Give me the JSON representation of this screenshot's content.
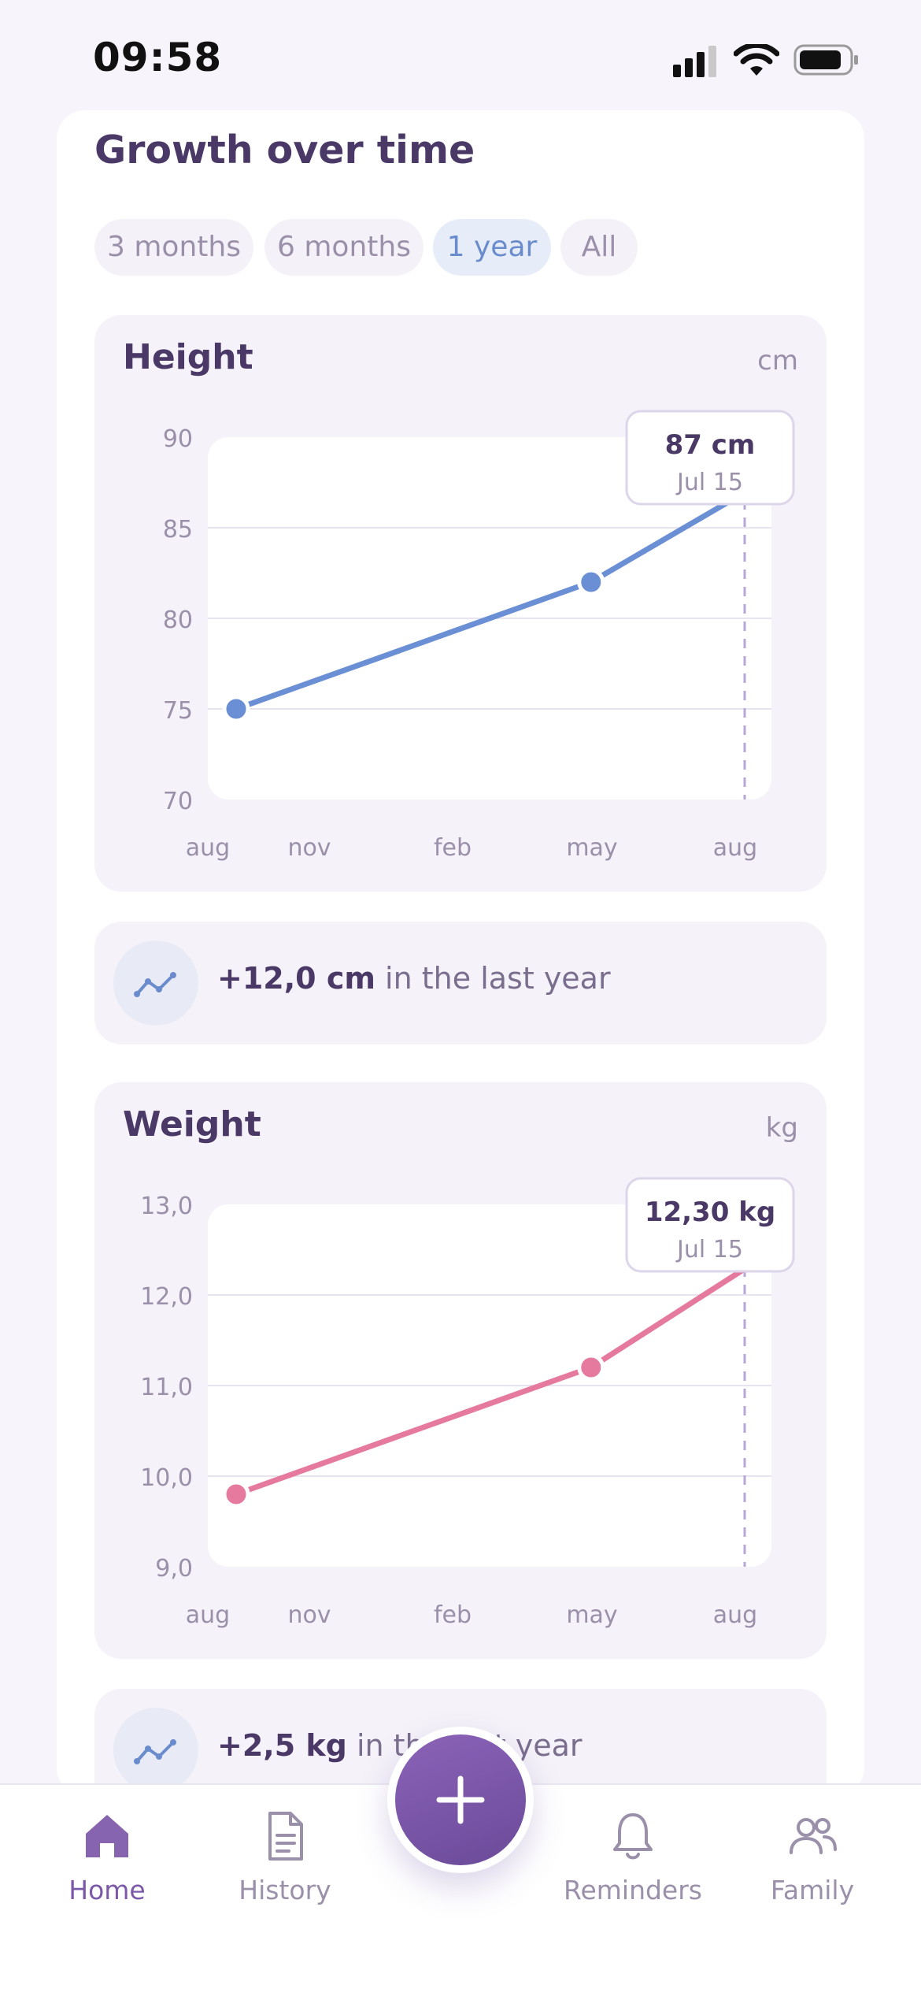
{
  "status_bar": {
    "time": "09:58"
  },
  "section": {
    "title": "Growth over time"
  },
  "range_tabs": [
    {
      "label": "3 months",
      "active": false
    },
    {
      "label": "6 months",
      "active": false
    },
    {
      "label": "1 year",
      "active": true
    },
    {
      "label": "All",
      "active": false
    }
  ],
  "height_chart": {
    "title": "Height",
    "unit": "cm",
    "tooltip": {
      "value": "87 cm",
      "date": "Jul 15"
    },
    "y_ticks": [
      "90",
      "85",
      "80",
      "75",
      "70"
    ],
    "x_ticks": [
      "aug",
      "nov",
      "feb",
      "may",
      "aug"
    ]
  },
  "height_summary": {
    "value": "+12,0 cm",
    "suffix": " in the last year"
  },
  "weight_chart": {
    "title": "Weight",
    "unit": "kg",
    "tooltip": {
      "value": "12,30 kg",
      "date": "Jul 15"
    },
    "y_ticks": [
      "13,0",
      "12,0",
      "11,0",
      "10,0",
      "9,0"
    ],
    "x_ticks": [
      "aug",
      "nov",
      "feb",
      "may",
      "aug"
    ]
  },
  "weight_summary": {
    "value": "+2,5 kg",
    "suffix": " in the last year"
  },
  "tab_bar": {
    "items": [
      {
        "label": "Home",
        "icon": "home-icon",
        "active": true
      },
      {
        "label": "History",
        "icon": "document-icon",
        "active": false
      },
      {
        "label": "Reminders",
        "icon": "bell-icon",
        "active": false
      },
      {
        "label": "Family",
        "icon": "people-icon",
        "active": false
      }
    ],
    "fab_icon": "plus-icon"
  },
  "chart_data": [
    {
      "type": "line",
      "title": "Height",
      "ylabel": "cm",
      "ylim": [
        70,
        90
      ],
      "x_ticks": [
        "aug",
        "nov",
        "feb",
        "may",
        "aug"
      ],
      "series": [
        {
          "color": "#6b8fd4",
          "x": [
            "aug",
            "apr",
            "jul 15"
          ],
          "values": [
            75,
            82,
            87
          ]
        }
      ],
      "highlight": {
        "x": "Jul 15",
        "y": 87
      },
      "grid": true
    },
    {
      "type": "line",
      "title": "Weight",
      "ylabel": "kg",
      "ylim": [
        9,
        13
      ],
      "x_ticks": [
        "aug",
        "nov",
        "feb",
        "may",
        "aug"
      ],
      "series": [
        {
          "color": "#e57a9e",
          "x": [
            "aug",
            "apr",
            "jul 15"
          ],
          "values": [
            9.8,
            11.2,
            12.3
          ]
        }
      ],
      "highlight": {
        "x": "Jul 15",
        "y": 12.3
      },
      "grid": true
    }
  ]
}
